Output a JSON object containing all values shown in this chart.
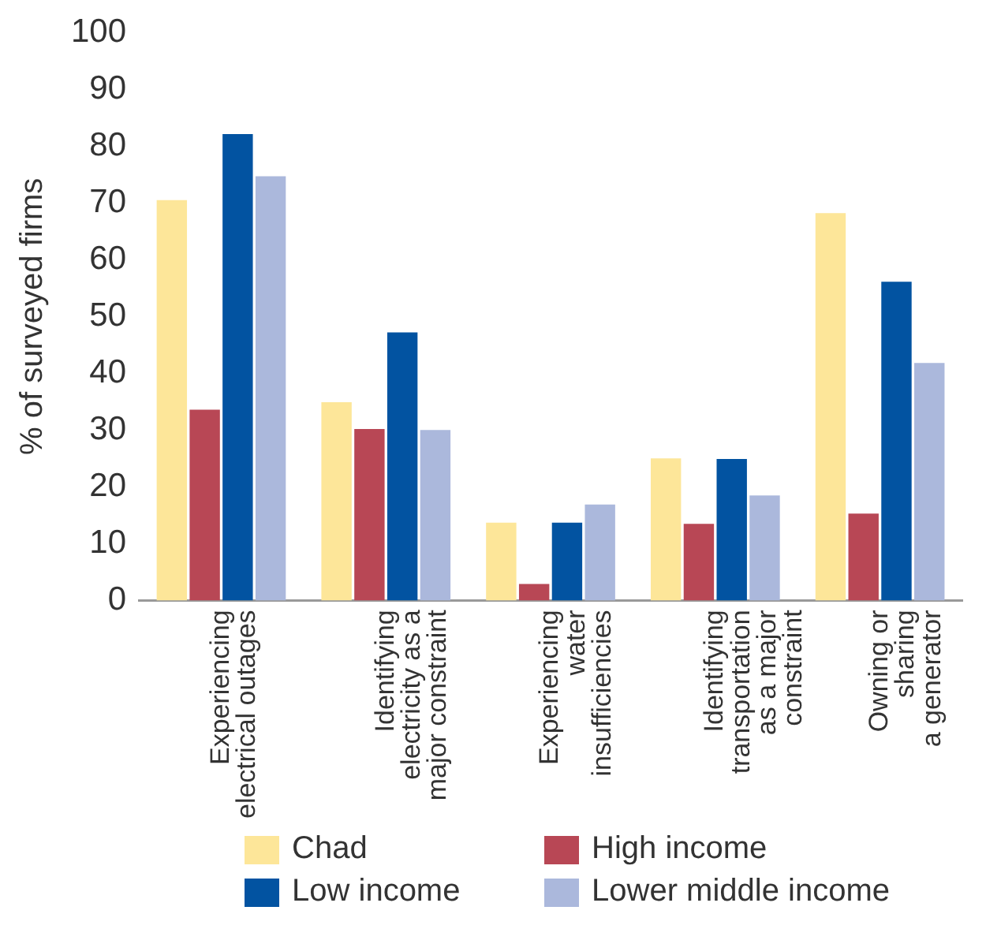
{
  "chart_data": {
    "type": "bar",
    "ylabel": "% of surveyed firms",
    "categories": [
      "Experiencing\nelectrical outages",
      "Identifying\nelectricity as a\nmajor constraint",
      "Experiencing\nwater\ninsufficiencies",
      "Identifying\ntransportation\nas a major\nconstraint",
      "Owning or\nsharing\na generator"
    ],
    "series": [
      {
        "name": "Chad",
        "color": "#fde699",
        "values": [
          70.5,
          34.9,
          13.7,
          25.0,
          68.2
        ]
      },
      {
        "name": "High income",
        "color": "#b84755",
        "values": [
          33.6,
          30.2,
          2.9,
          13.5,
          15.3
        ]
      },
      {
        "name": "Low income",
        "color": "#0253a1",
        "values": [
          82.1,
          47.2,
          13.7,
          24.9,
          56.1
        ]
      },
      {
        "name": "Lower middle income",
        "color": "#abb8dc",
        "values": [
          74.7,
          30.0,
          16.9,
          18.5,
          41.8
        ]
      }
    ],
    "ylim": [
      0,
      100
    ],
    "yticks": [
      0,
      10,
      20,
      30,
      40,
      50,
      60,
      70,
      80,
      90,
      100
    ],
    "grid": false,
    "legend": "bottom"
  }
}
